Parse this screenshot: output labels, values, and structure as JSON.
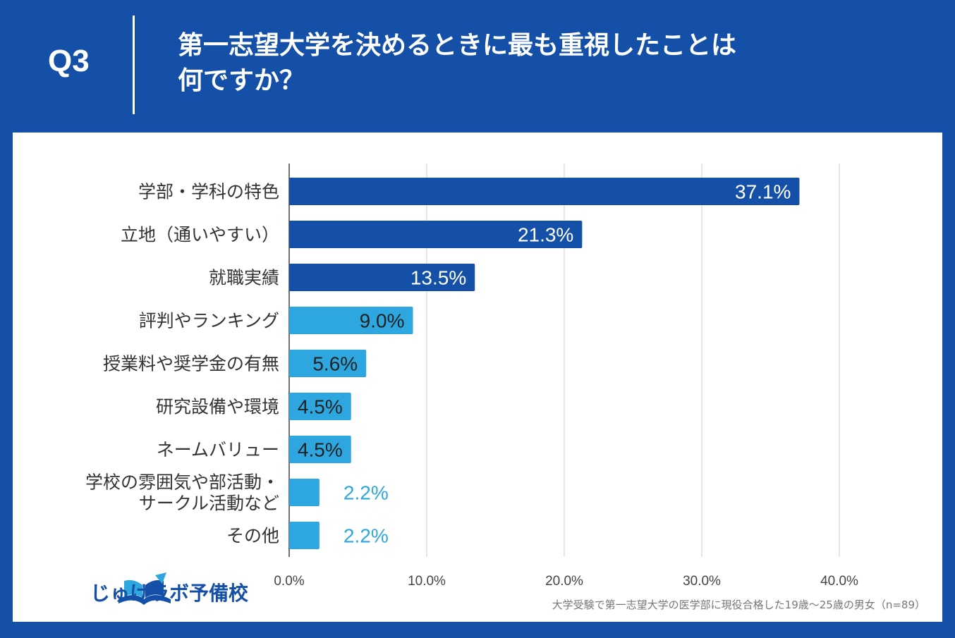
{
  "header": {
    "question_number": "Q3",
    "title_line1": "第一志望大学を決めるときに最も重視したことは",
    "title_line2": "何ですか？"
  },
  "chart_data": {
    "type": "bar",
    "orientation": "horizontal",
    "categories": [
      [
        "学部・学科の特色"
      ],
      [
        "立地（通いやすい）"
      ],
      [
        "就職実績"
      ],
      [
        "評判やランキング"
      ],
      [
        "授業料や奨学金の有無"
      ],
      [
        "研究設備や環境"
      ],
      [
        "ネームバリュー"
      ],
      [
        "学校の雰囲気や部活動・",
        "サークル活動など"
      ],
      [
        "その他"
      ]
    ],
    "values": [
      37.1,
      21.3,
      13.5,
      9.0,
      5.6,
      4.5,
      4.5,
      2.2,
      2.2
    ],
    "value_labels": [
      "37.1%",
      "21.3%",
      "13.5%",
      "9.0%",
      "5.6%",
      "4.5%",
      "4.5%",
      "2.2%",
      "2.2%"
    ],
    "xlim": [
      0,
      40
    ],
    "xticks": [
      "0.0%",
      "10.0%",
      "20.0%",
      "30.0%",
      "40.0%"
    ],
    "grid": true,
    "colors": {
      "top3": "#1550a8",
      "others": "#2ea7e0",
      "label_inside_dark": "#ffffff",
      "label_inside_light": "#222222",
      "label_outside": "#2ea7e0"
    }
  },
  "footer": {
    "logo_text": "じゅけラボ予備校",
    "logo_icon": "book-icon",
    "source_note": "大学受験で第一志望大学の医学部に現役合格した19歳〜25歳の男女（n=89）"
  }
}
